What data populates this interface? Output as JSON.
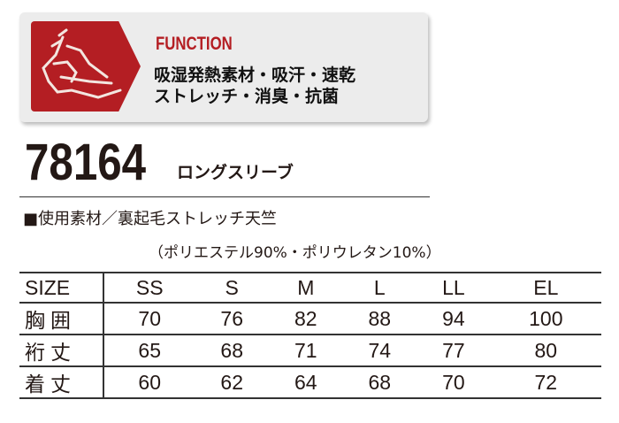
{
  "function": {
    "title": "FUNCTION",
    "lines": [
      "吸湿発熱素材・吸汗・速乾",
      "ストレッチ・消臭・抗菌"
    ],
    "brand_color": "#b41e23",
    "logo_icon": "dragon-icon"
  },
  "product": {
    "number": "78164",
    "name": "ロングスリーブ"
  },
  "material": {
    "label": "■使用素材／裏起毛ストレッチ天竺",
    "composition": "（ポリエステル90%・ポリウレタン10%）"
  },
  "size_table": {
    "header": "SIZE",
    "sizes": [
      "SS",
      "S",
      "M",
      "L",
      "LL",
      "EL"
    ],
    "rows": [
      {
        "label": "胸囲",
        "values": [
          "70",
          "76",
          "82",
          "88",
          "94",
          "100"
        ]
      },
      {
        "label": "裄丈",
        "values": [
          "65",
          "68",
          "71",
          "74",
          "77",
          "80"
        ]
      },
      {
        "label": "着丈",
        "values": [
          "60",
          "62",
          "64",
          "68",
          "70",
          "72"
        ]
      }
    ]
  }
}
